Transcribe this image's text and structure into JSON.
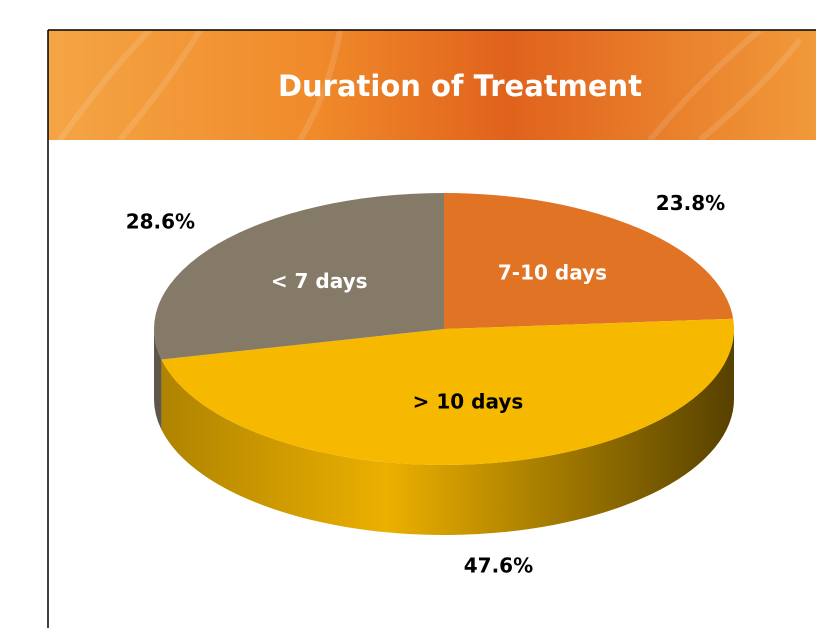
{
  "chart_data": {
    "type": "pie3d",
    "title": "Duration of Treatment",
    "categories": [
      "7-10 days",
      "> 10 days",
      "< 7 days"
    ],
    "values": [
      23.8,
      47.6,
      28.6
    ],
    "value_labels": [
      "23.8%",
      "47.6%",
      "28.6%"
    ],
    "colors": [
      "#e07324",
      "#f7b900",
      "#857a68"
    ],
    "label_colors": [
      "#ffffff",
      "#000000",
      "#ffffff"
    ]
  }
}
